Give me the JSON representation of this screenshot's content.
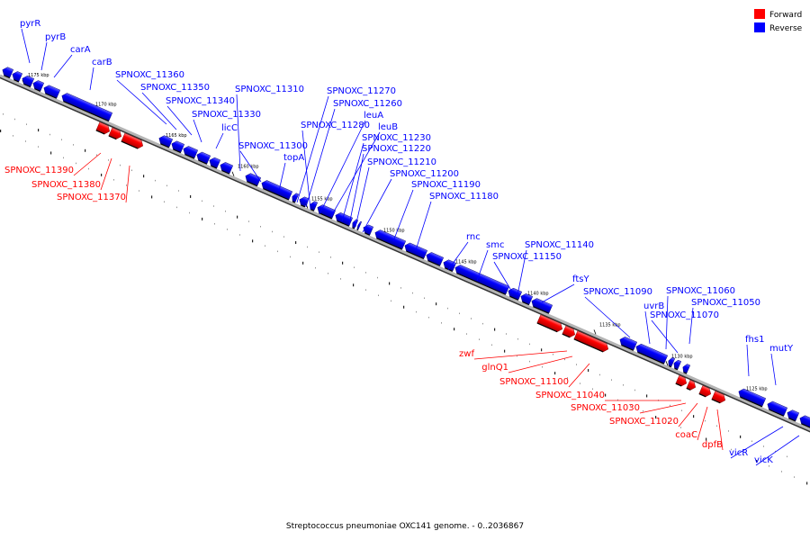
{
  "legend": [
    {
      "name": "Forward",
      "color": "#ff0000"
    },
    {
      "name": "Reverse",
      "color": "#0000ff"
    }
  ],
  "caption": "Streptococcus pneumoniae OXC141 genome. - 0..2036867",
  "ticks": [
    "1175 kbp",
    "1170 kbp",
    "1165 kbp",
    "1160 kbp",
    "1155 kbp",
    "1150 kbp",
    "1145 kbp",
    "1140 kbp",
    "1135 kbp",
    "1130 kbp",
    "1125 kbp"
  ],
  "genes": [
    {
      "name": "pyrR",
      "strand": "reverse"
    },
    {
      "name": "pyrB",
      "strand": "reverse"
    },
    {
      "name": "carA",
      "strand": "reverse"
    },
    {
      "name": "carB",
      "strand": "reverse"
    },
    {
      "name": "SPNOXC_11360",
      "strand": "reverse"
    },
    {
      "name": "SPNOXC_11350",
      "strand": "reverse"
    },
    {
      "name": "SPNOXC_11340",
      "strand": "reverse"
    },
    {
      "name": "SPNOXC_11330",
      "strand": "reverse"
    },
    {
      "name": "licC",
      "strand": "reverse"
    },
    {
      "name": "SPNOXC_11310",
      "strand": "reverse"
    },
    {
      "name": "SPNOXC_11300",
      "strand": "reverse"
    },
    {
      "name": "topA",
      "strand": "reverse"
    },
    {
      "name": "SPNOXC_11270",
      "strand": "reverse"
    },
    {
      "name": "SPNOXC_11260",
      "strand": "reverse"
    },
    {
      "name": "SPNOXC_11280",
      "strand": "reverse"
    },
    {
      "name": "leuA",
      "strand": "reverse"
    },
    {
      "name": "leuB",
      "strand": "reverse"
    },
    {
      "name": "SPNOXC_11230",
      "strand": "reverse"
    },
    {
      "name": "SPNOXC_11220",
      "strand": "reverse"
    },
    {
      "name": "SPNOXC_11210",
      "strand": "reverse"
    },
    {
      "name": "SPNOXC_11200",
      "strand": "reverse"
    },
    {
      "name": "SPNOXC_11190",
      "strand": "reverse"
    },
    {
      "name": "SPNOXC_11180",
      "strand": "reverse"
    },
    {
      "name": "rnc",
      "strand": "reverse"
    },
    {
      "name": "smc",
      "strand": "reverse"
    },
    {
      "name": "SPNOXC_11140",
      "strand": "reverse"
    },
    {
      "name": "SPNOXC_11150",
      "strand": "reverse"
    },
    {
      "name": "ftsY",
      "strand": "reverse"
    },
    {
      "name": "SPNOXC_11090",
      "strand": "reverse"
    },
    {
      "name": "uvrB",
      "strand": "reverse"
    },
    {
      "name": "SPNOXC_11060",
      "strand": "reverse"
    },
    {
      "name": "SPNOXC_11050",
      "strand": "reverse"
    },
    {
      "name": "SPNOXC_11070",
      "strand": "reverse"
    },
    {
      "name": "fhs1",
      "strand": "reverse"
    },
    {
      "name": "mutY",
      "strand": "reverse"
    },
    {
      "name": "vicR",
      "strand": "reverse"
    },
    {
      "name": "vicK",
      "strand": "reverse"
    },
    {
      "name": "SPNOXC_11390",
      "strand": "forward"
    },
    {
      "name": "SPNOXC_11380",
      "strand": "forward"
    },
    {
      "name": "SPNOXC_11370",
      "strand": "forward"
    },
    {
      "name": "zwf",
      "strand": "forward"
    },
    {
      "name": "glnQ1",
      "strand": "forward"
    },
    {
      "name": "SPNOXC_11100",
      "strand": "forward"
    },
    {
      "name": "SPNOXC_11040",
      "strand": "forward"
    },
    {
      "name": "SPNOXC_11030",
      "strand": "forward"
    },
    {
      "name": "SPNOXC_11020",
      "strand": "forward"
    },
    {
      "name": "coaC",
      "strand": "forward"
    },
    {
      "name": "dpfB",
      "strand": "forward"
    }
  ]
}
